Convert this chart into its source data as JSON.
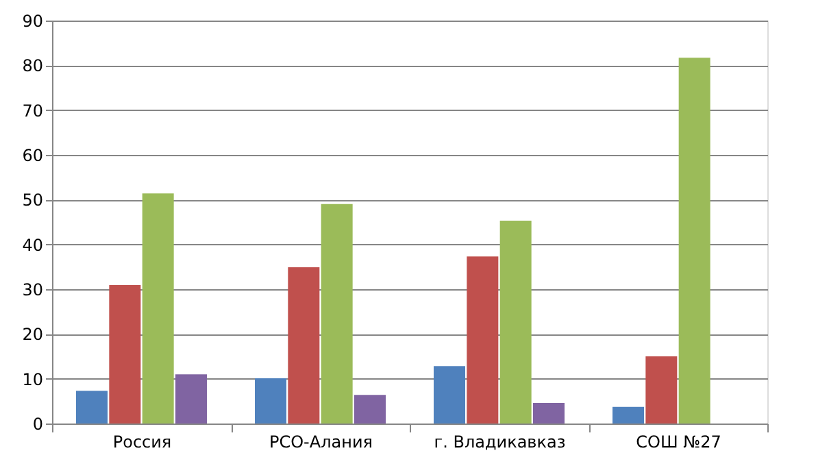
{
  "chart_data": {
    "type": "bar",
    "categories": [
      "Россия",
      "РСО-Алания",
      "г. Владикавказ",
      "СОШ №27"
    ],
    "series": [
      {
        "color": "#4f81bd",
        "values": [
          7.3,
          10.1,
          12.8,
          3.7
        ]
      },
      {
        "color": "#c0504d",
        "values": [
          30.9,
          34.9,
          37.3,
          15
        ]
      },
      {
        "color": "#9bbb59",
        "values": [
          51.4,
          49,
          45.3,
          81.7
        ]
      },
      {
        "color": "#8064a2",
        "values": [
          11,
          6.4,
          4.6,
          0
        ]
      }
    ],
    "ylim": [
      0,
      90
    ],
    "yticks": [
      0,
      10,
      20,
      30,
      40,
      50,
      60,
      70,
      80,
      90
    ],
    "grid": "y"
  }
}
